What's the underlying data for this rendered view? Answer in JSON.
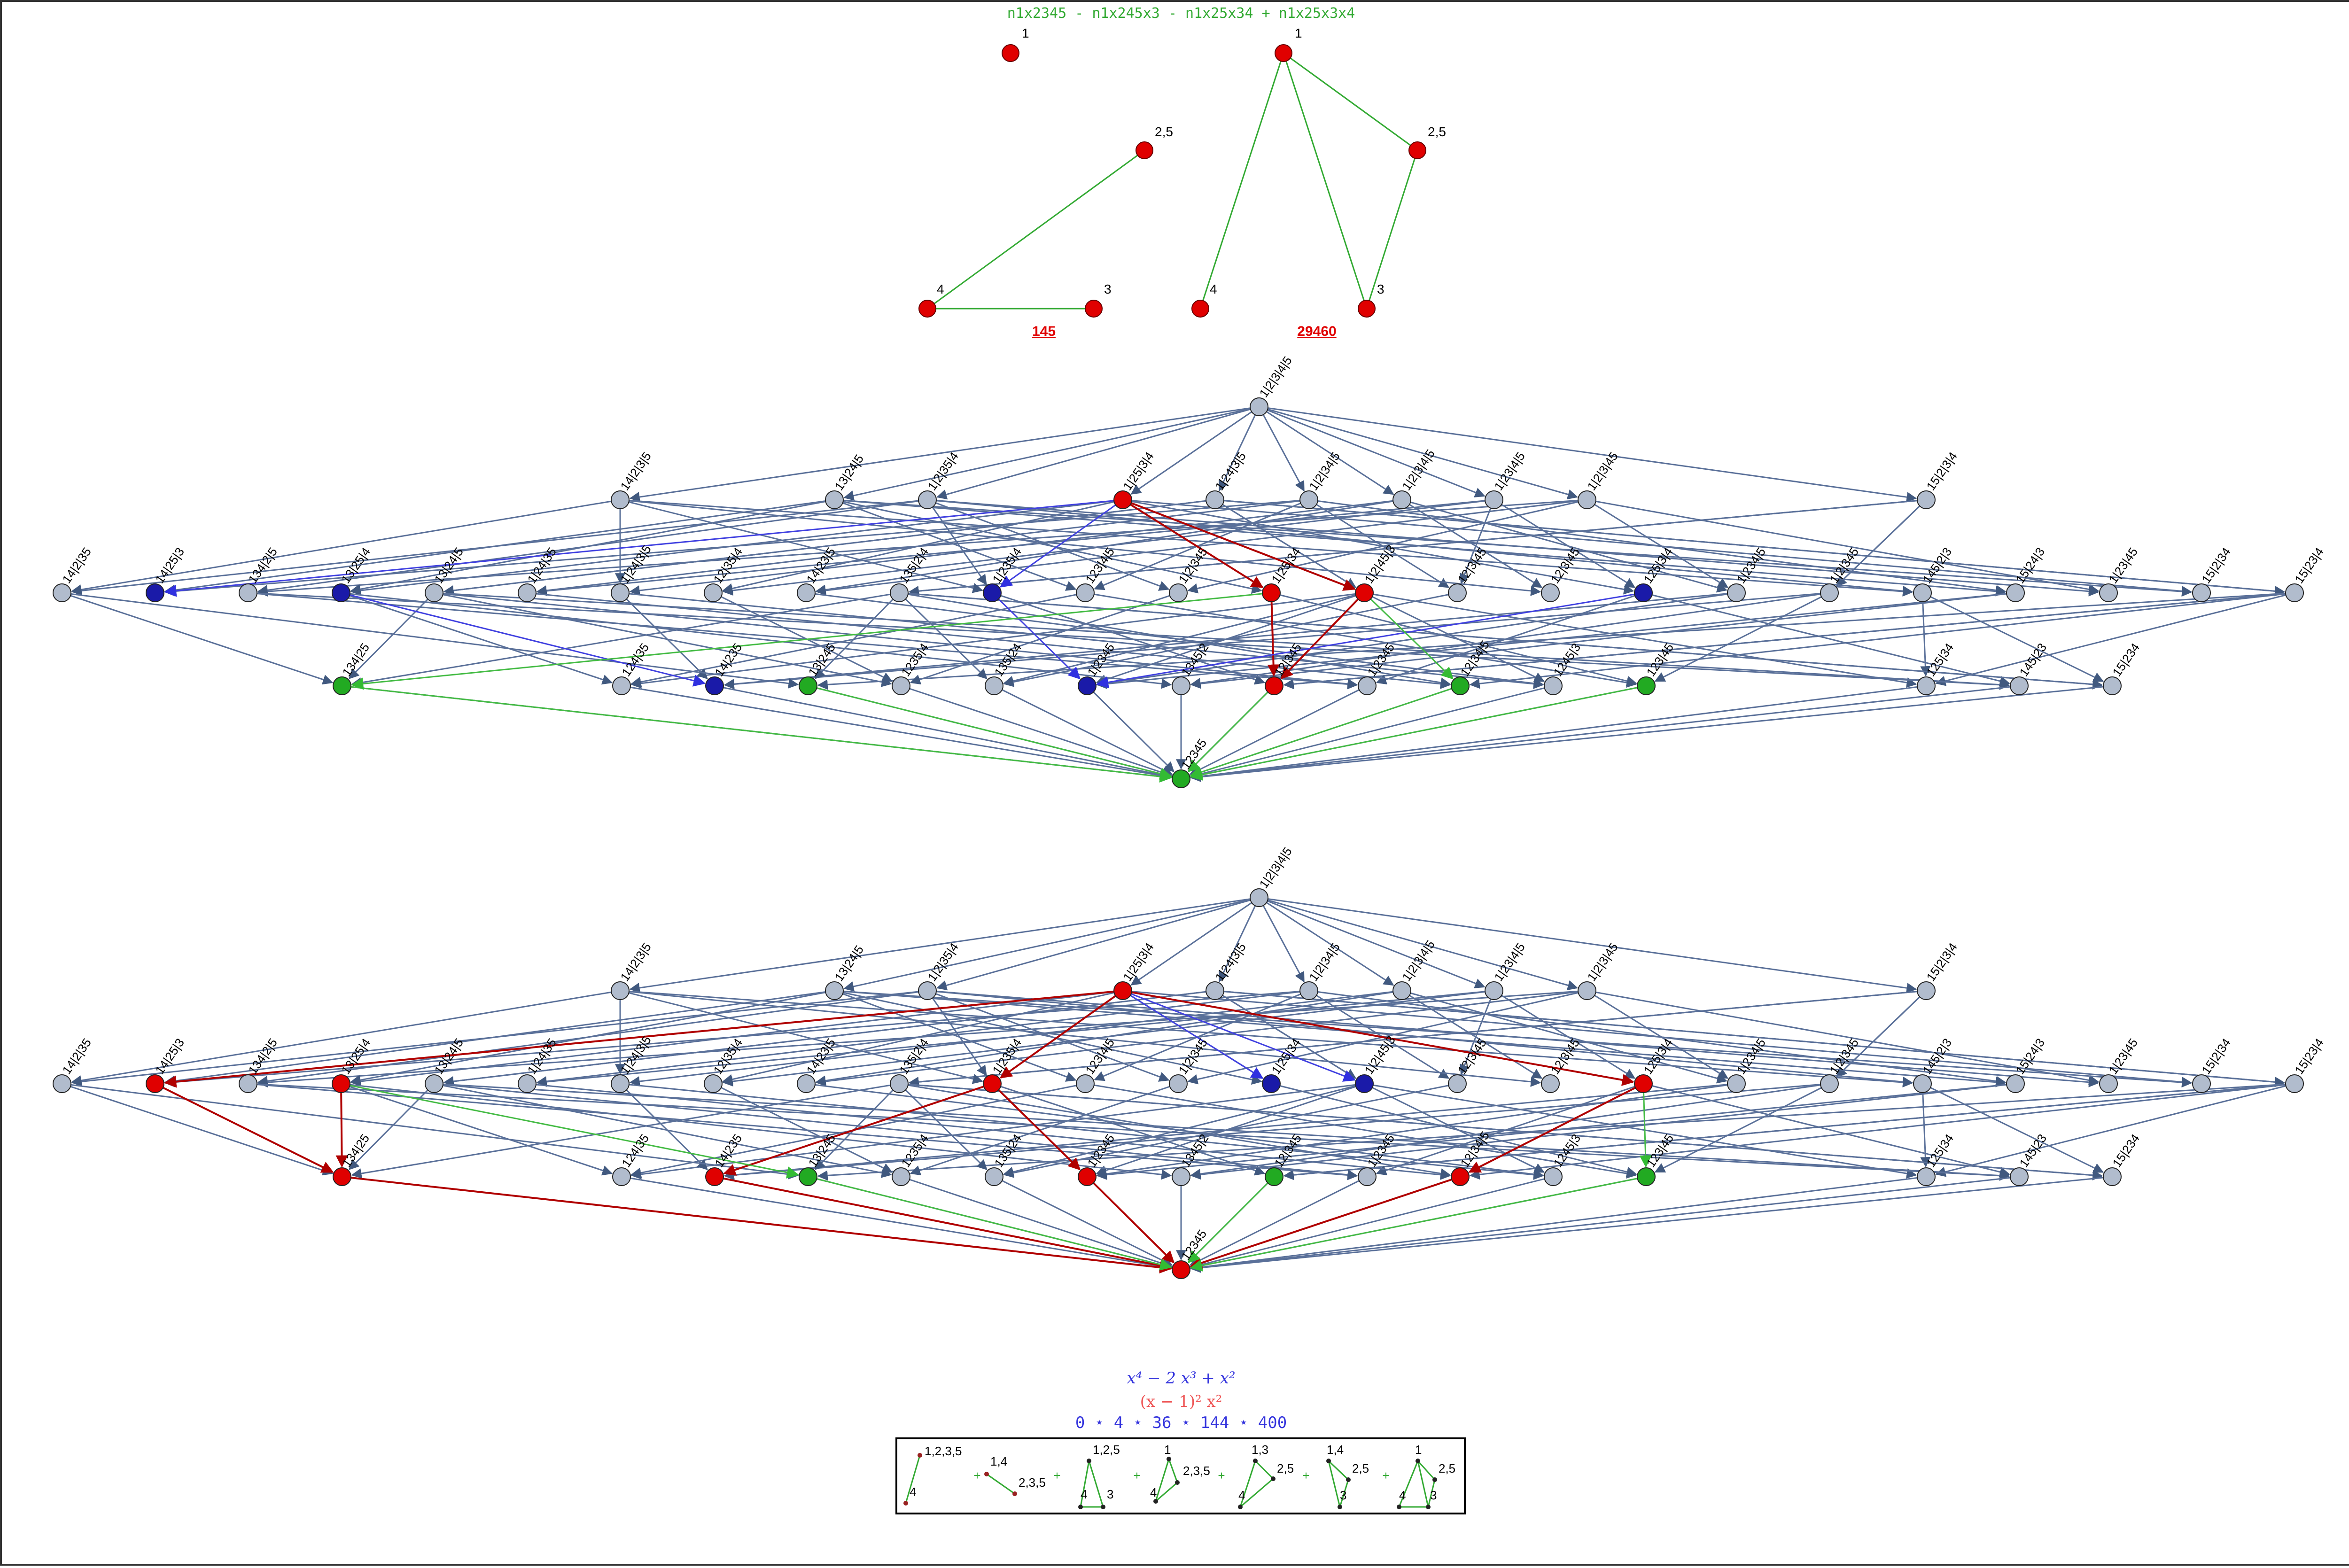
{
  "header": {
    "polynomial": "n1x2345 - n1x245x3 - n1x25x34 + n1x25x3x4"
  },
  "colors": {
    "node_gray": "#b1bccd",
    "edge_gray": "#5a7099",
    "red": "#e00000",
    "dark_red": "#b00000",
    "blue": "#1a1aa8",
    "edge_blue": "#4040e0",
    "green": "#22aa22",
    "edge_green": "#44bb44",
    "header_green": "#33aa33",
    "poly_blue": "#3333dd",
    "poly_red": "#ee5555"
  },
  "small_graphs": [
    {
      "name": "graph-left",
      "nodes": [
        "1",
        "2,5",
        "4",
        "3"
      ],
      "edges": [
        [
          "2,5",
          "4"
        ],
        [
          "4",
          "3"
        ]
      ],
      "count": "145"
    },
    {
      "name": "graph-right",
      "nodes": [
        "1",
        "2,5",
        "4",
        "3"
      ],
      "edges": [
        [
          "1",
          "2,5"
        ],
        [
          "1",
          "4"
        ],
        [
          "1",
          "3"
        ],
        [
          "2,5",
          "3"
        ]
      ],
      "count": "29460"
    }
  ],
  "lattice_labels": {
    "top": "1|2|3|4|5",
    "row1": [
      "14|2|3|5",
      "13|24|5",
      "1|2|35|4",
      "1|25|3|4",
      "1|24|3|5",
      "1|2|34|5",
      "1|2|3|4|5",
      "1|23|4|5",
      "1|2|3|45",
      "15|2|3|4"
    ],
    "row2": [
      "14|2|35",
      "14|25|3",
      "134|2|5",
      "13|25|4",
      "13|24|5",
      "1|24|35",
      "1|24|3|5",
      "12|35|4",
      "14|23|5",
      "135|2|4",
      "1|235|4",
      "123|4|5",
      "1|2|345",
      "1|25|34",
      "1|2|45|3",
      "12|3|45",
      "12|3|45",
      "125|3|4",
      "1|234|5",
      "1|2|345",
      "145|2|3",
      "15|24|3",
      "1|23|45",
      "15|2|34",
      "15|23|4"
    ],
    "row3": [
      "134|25",
      "124|35",
      "14|235",
      "13|245",
      "1235|4",
      "135|24",
      "1|2345",
      "1345|2",
      "12|345",
      "1|2345",
      "12|34|5",
      "1245|3",
      "123|45",
      "125|34",
      "145|23",
      "15|234"
    ],
    "bottom": "12345"
  },
  "polynomials": {
    "line1": "x⁴ − 2 x³ + x²",
    "line2": "(x − 1)² x²",
    "line3": "0 ⋆ 4 ⋆ 36 ⋆ 144 ⋆ 400"
  },
  "legend_graphs": [
    {
      "labels": [
        "1,2,3,5",
        "4"
      ]
    },
    {
      "labels": [
        "1,4",
        "2,3,5"
      ]
    },
    {
      "labels": [
        "1,2,5",
        "4",
        "3"
      ]
    },
    {
      "labels": [
        "1",
        "2,3,5",
        "4"
      ]
    },
    {
      "labels": [
        "1,3",
        "2,5",
        "4"
      ]
    },
    {
      "labels": [
        "1,4",
        "2,5",
        "3"
      ]
    },
    {
      "labels": [
        "1",
        "2,5",
        "4",
        "3"
      ]
    }
  ],
  "legend_separator": "+"
}
